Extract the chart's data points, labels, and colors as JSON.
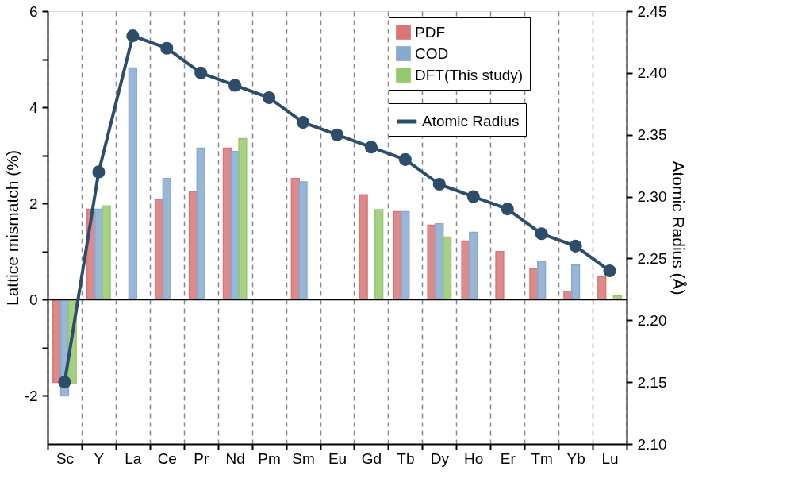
{
  "chart_data": {
    "type": "bar",
    "categories": [
      "Sc",
      "Y",
      "La",
      "Ce",
      "Pr",
      "Nd",
      "Pm",
      "Sm",
      "Eu",
      "Gd",
      "Tb",
      "Dy",
      "Ho",
      "Er",
      "Tm",
      "Yb",
      "Lu"
    ],
    "series": [
      {
        "name": "PDF",
        "color": "#d97575",
        "values": [
          -1.72,
          1.88,
          null,
          2.08,
          2.25,
          3.15,
          null,
          2.52,
          null,
          2.18,
          1.83,
          1.55,
          1.22,
          1.0,
          0.65,
          0.17,
          0.48
        ]
      },
      {
        "name": "COD",
        "color": "#86a9cf",
        "values": [
          -2.0,
          1.88,
          4.82,
          2.52,
          3.15,
          3.08,
          null,
          2.45,
          null,
          null,
          1.83,
          1.58,
          1.4,
          null,
          0.8,
          0.72,
          null
        ]
      },
      {
        "name": "DFT(This study)",
        "color": "#96c86e",
        "values": [
          -1.75,
          1.95,
          null,
          null,
          null,
          3.35,
          null,
          null,
          null,
          1.87,
          null,
          1.3,
          null,
          null,
          null,
          null,
          0.08
        ]
      },
      {
        "name": "Atomic Radius",
        "type": "line",
        "axis": "y2",
        "color": "#2e4d6b",
        "marker": "circle",
        "values": [
          2.15,
          2.32,
          2.43,
          2.42,
          2.4,
          2.39,
          2.38,
          2.36,
          2.35,
          2.34,
          2.33,
          2.31,
          2.3,
          2.29,
          2.27,
          2.26,
          2.24
        ]
      }
    ],
    "ylabel": "Lattice mismatch (%)",
    "y2label": "Atomic Radius (Å)",
    "ylim": [
      -3,
      6
    ],
    "yticks": [
      {
        "value": -2,
        "label": "-2"
      },
      {
        "value": -1,
        "label": null
      },
      0,
      {
        "value": 1,
        "label": null
      },
      2,
      {
        "value": 3,
        "label": null
      },
      4,
      {
        "value": 5,
        "label": null
      },
      6
    ],
    "y2lim": [
      2.1,
      2.45
    ],
    "y2ticks": [
      {
        "value": 2.1,
        "label": "2.10"
      },
      {
        "value": 2.15,
        "label": "2.15"
      },
      {
        "value": 2.2,
        "label": "2.20"
      },
      {
        "value": 2.25,
        "label": "2.25"
      },
      {
        "value": 2.3,
        "label": "2.30"
      },
      {
        "value": 2.35,
        "label": "2.35"
      },
      {
        "value": 2.4,
        "label": "2.40"
      },
      {
        "value": 2.45,
        "label": "2.45"
      }
    ],
    "ref_lines": [
      {
        "axis": "y",
        "value": 0,
        "color": "#000000"
      }
    ],
    "grid": "x",
    "legend": "top right"
  }
}
